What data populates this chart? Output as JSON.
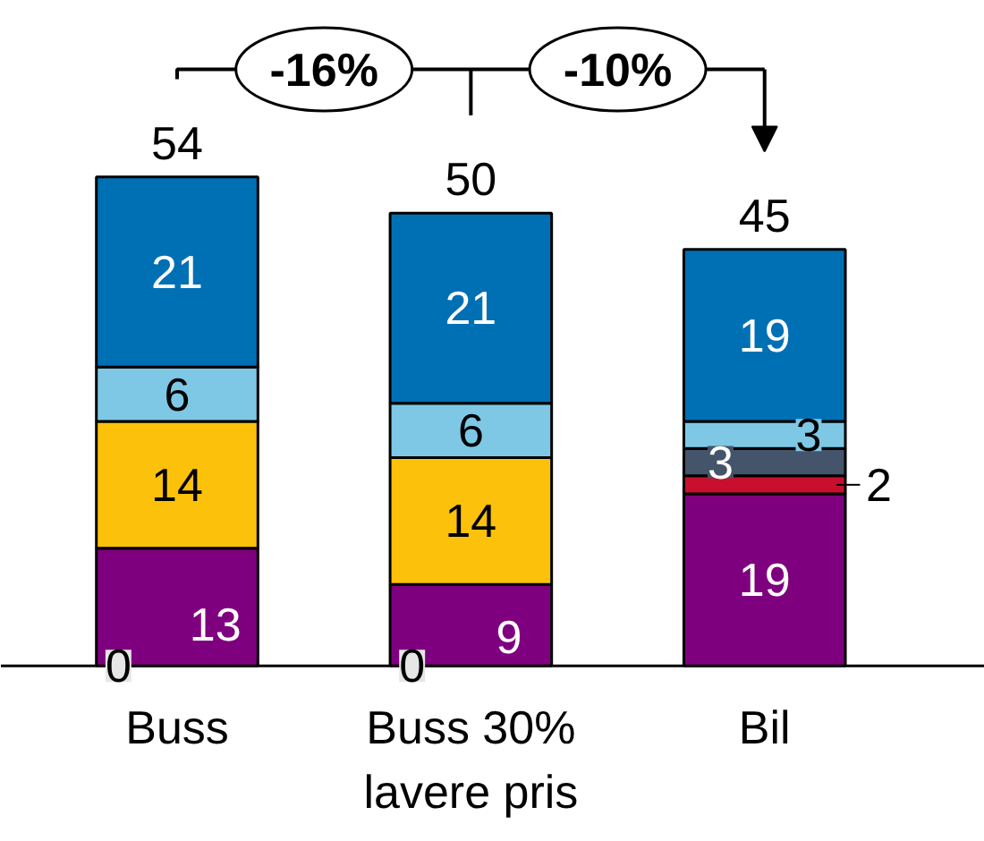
{
  "chart_data": {
    "type": "bar",
    "stacked": true,
    "data_labels": true,
    "categories": [
      "Buss",
      "Buss 30%\nlavere pris",
      "Bil"
    ],
    "series": [
      {
        "color": "#e6e6e6",
        "values": [
          0,
          0,
          null
        ]
      },
      {
        "color": "#7f007f",
        "values": [
          13,
          9,
          19
        ]
      },
      {
        "color": "#c8102e",
        "values": [
          null,
          null,
          2
        ]
      },
      {
        "color": "#44546a",
        "values": [
          null,
          null,
          3
        ]
      },
      {
        "color": "#fcc10a",
        "values": [
          14,
          14,
          null
        ]
      },
      {
        "color": "#7ec8e6",
        "values": [
          6,
          6,
          3
        ]
      },
      {
        "color": "#0070b4",
        "values": [
          21,
          21,
          19
        ]
      }
    ],
    "totals": [
      "54",
      "50",
      "45"
    ],
    "annotations": [
      "-16%",
      "-10%"
    ]
  }
}
